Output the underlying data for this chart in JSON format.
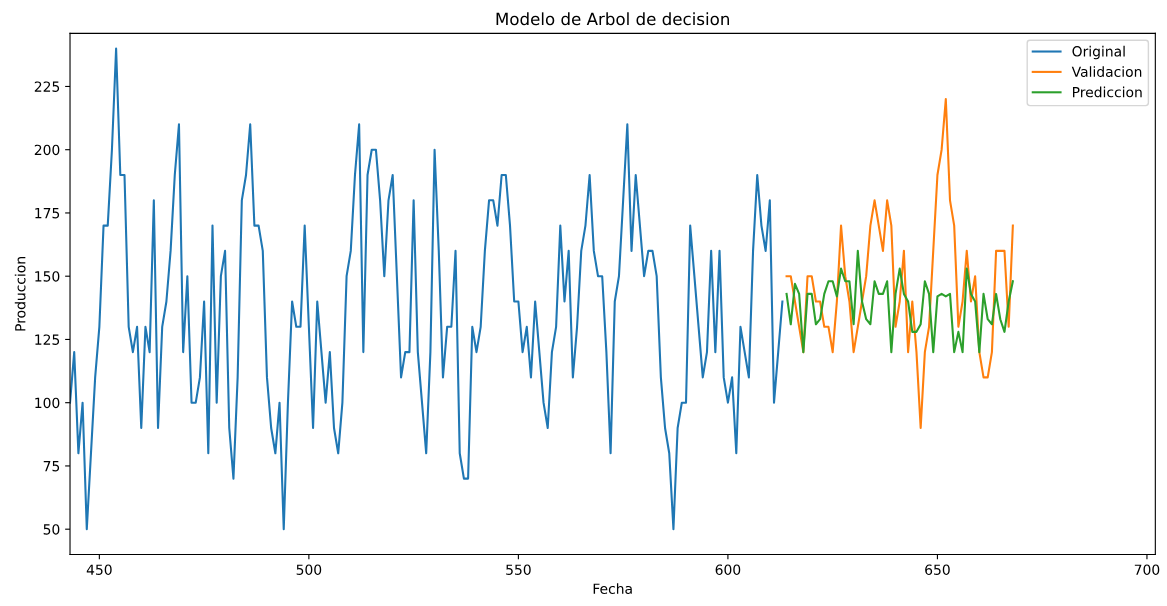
{
  "chart_data": {
    "type": "line",
    "title": "Modelo de Arbol de decision",
    "xlabel": "Fecha",
    "ylabel": "Produccion",
    "xlim": [
      443,
      702
    ],
    "xticks": [
      450,
      500,
      550,
      600,
      650,
      700
    ],
    "ylim": [
      40,
      246
    ],
    "yticks": [
      50,
      75,
      100,
      125,
      150,
      175,
      200,
      225
    ],
    "grid": false,
    "legend": "top right",
    "line_style": "solid",
    "marker": "none",
    "series": [
      {
        "name": "Original",
        "color": "#1f77b4",
        "x": [
          443,
          444,
          445,
          446,
          447,
          448,
          449,
          450,
          451,
          452,
          453,
          454,
          455,
          456,
          457,
          458,
          459,
          460,
          461,
          462,
          463,
          464,
          465,
          466,
          467,
          468,
          469,
          470,
          471,
          472,
          473,
          474,
          475,
          476,
          477,
          478,
          479,
          480,
          481,
          482,
          483,
          484,
          485,
          486,
          487,
          488,
          489,
          490,
          491,
          492,
          493,
          494,
          495,
          496,
          497,
          498,
          499,
          500,
          501,
          502,
          503,
          504,
          505,
          506,
          507,
          508,
          509,
          510,
          511,
          512,
          513,
          514,
          515,
          516,
          517,
          518,
          519,
          520,
          521,
          522,
          523,
          524,
          525,
          526,
          527,
          528,
          529,
          530,
          531,
          532,
          533,
          534,
          535,
          536,
          537,
          538,
          539,
          540,
          541,
          542,
          543,
          544,
          545,
          546,
          547,
          548,
          549,
          550,
          551,
          552,
          553,
          554,
          555,
          556,
          557,
          558,
          559,
          560,
          561,
          562,
          563,
          564,
          565,
          566,
          567,
          568,
          569,
          570,
          571,
          572,
          573,
          574,
          575,
          576,
          577,
          578,
          579,
          580,
          581,
          582,
          583,
          584,
          585,
          586,
          587,
          588,
          589,
          590,
          591,
          592,
          593,
          594,
          595,
          596,
          597,
          598,
          599,
          600,
          601,
          602,
          603,
          604,
          605,
          606,
          607,
          608,
          609,
          610,
          611,
          612,
          613
        ],
        "values": [
          100,
          120,
          80,
          100,
          50,
          80,
          110,
          130,
          170,
          170,
          200,
          240,
          190,
          190,
          130,
          120,
          130,
          90,
          130,
          120,
          180,
          90,
          130,
          140,
          160,
          190,
          210,
          120,
          150,
          100,
          100,
          110,
          140,
          80,
          170,
          100,
          150,
          160,
          90,
          70,
          110,
          180,
          190,
          210,
          170,
          170,
          160,
          110,
          90,
          80,
          100,
          50,
          100,
          140,
          130,
          130,
          170,
          130,
          90,
          140,
          120,
          100,
          120,
          90,
          80,
          100,
          150,
          160,
          190,
          210,
          120,
          190,
          200,
          200,
          180,
          150,
          180,
          190,
          150,
          110,
          120,
          120,
          180,
          120,
          100,
          80,
          120,
          200,
          160,
          110,
          130,
          130,
          160,
          80,
          70,
          70,
          130,
          120,
          130,
          160,
          180,
          180,
          170,
          190,
          190,
          170,
          140,
          140,
          120,
          130,
          110,
          140,
          120,
          100,
          90,
          120,
          130,
          170,
          140,
          160,
          110,
          130,
          160,
          170,
          190,
          160,
          150,
          150,
          120,
          80,
          140,
          150,
          180,
          210,
          160,
          190,
          170,
          150,
          160,
          160,
          150,
          110,
          90,
          80,
          50,
          90,
          100,
          100,
          170,
          150,
          130,
          110,
          120,
          160,
          120,
          160,
          110,
          100,
          110,
          80,
          130,
          120,
          110,
          160,
          190,
          170,
          160,
          180,
          100,
          120,
          140
        ]
      },
      {
        "name": "Validacion",
        "color": "#ff7f0e",
        "x": [
          614,
          615,
          616,
          617,
          618,
          619,
          620,
          621,
          622,
          623,
          624,
          625,
          626,
          627,
          628,
          629,
          630,
          631,
          632,
          633,
          634,
          635,
          636,
          637,
          638,
          639,
          640,
          641,
          642,
          643,
          644,
          645,
          646,
          647,
          648,
          649,
          650,
          651,
          652,
          653,
          654,
          655,
          656,
          657,
          658,
          659,
          660,
          661,
          662,
          663,
          664,
          665,
          666,
          667,
          668
        ],
        "values": [
          150,
          150,
          140,
          130,
          120,
          150,
          150,
          140,
          140,
          130,
          130,
          120,
          140,
          170,
          150,
          140,
          120,
          130,
          140,
          150,
          170,
          180,
          170,
          160,
          180,
          170,
          130,
          140,
          160,
          120,
          140,
          120,
          90,
          120,
          130,
          160,
          190,
          200,
          220,
          180,
          170,
          130,
          140,
          160,
          140,
          150,
          120,
          110,
          110,
          120,
          160,
          160,
          160,
          130,
          170
        ]
      },
      {
        "name": "Prediccion",
        "color": "#2ca02c",
        "x": [
          614,
          615,
          616,
          617,
          618,
          619,
          620,
          621,
          622,
          623,
          624,
          625,
          626,
          627,
          628,
          629,
          630,
          631,
          632,
          633,
          634,
          635,
          636,
          637,
          638,
          639,
          640,
          641,
          642,
          643,
          644,
          645,
          646,
          647,
          648,
          649,
          650,
          651,
          652,
          653,
          654,
          655,
          656,
          657,
          658,
          659,
          660,
          661,
          662,
          663,
          664,
          665,
          666,
          667,
          668
        ],
        "values": [
          143,
          131,
          147,
          143,
          120,
          143,
          143,
          131,
          133,
          143,
          148,
          148,
          142,
          153,
          148,
          148,
          131,
          160,
          140,
          133,
          131,
          148,
          143,
          143,
          148,
          120,
          143,
          153,
          143,
          140,
          128,
          128,
          131,
          148,
          143,
          120,
          142,
          143,
          142,
          143,
          120,
          128,
          120,
          153,
          143,
          140,
          120,
          143,
          133,
          131,
          143,
          133,
          128,
          140,
          148
        ]
      }
    ]
  }
}
